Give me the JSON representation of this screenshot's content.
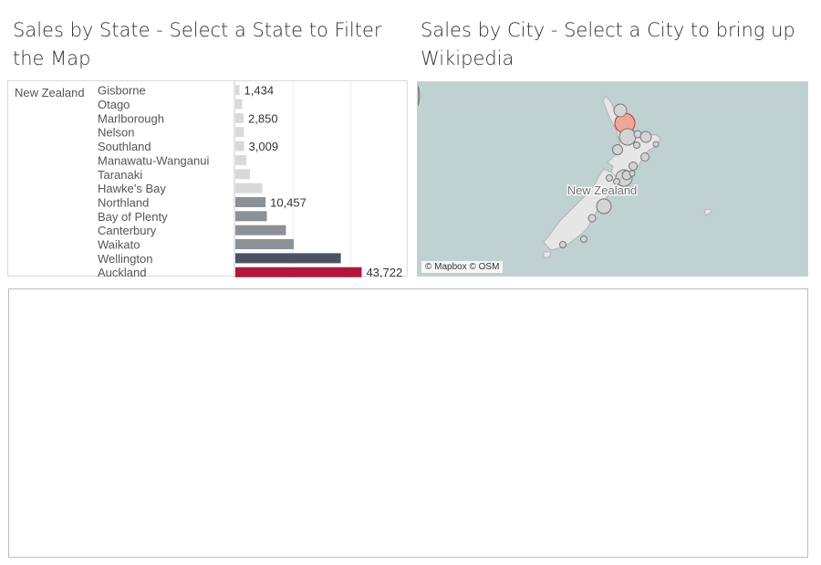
{
  "left_sheet": {
    "title": "Sales by State - Select a State to Filter the Map"
  },
  "right_sheet": {
    "title": "Sales by City - Select a City to bring up Wikipedia"
  },
  "chart_data": {
    "type": "bar",
    "orientation": "horizontal",
    "country": "New Zealand",
    "categories": [
      "Gisborne",
      "Otago",
      "Marlborough",
      "Nelson",
      "Southland",
      "Manawatu-Wanganui",
      "Taranaki",
      "Hawke’s Bay",
      "Northland",
      "Bay of Plenty",
      "Canterbury",
      "Waikato",
      "Wellington",
      "Auckland"
    ],
    "values": [
      1434,
      2400,
      2850,
      2950,
      3009,
      3800,
      5000,
      9300,
      10457,
      10900,
      17500,
      20200,
      36500,
      43722
    ],
    "labels": [
      "1,434",
      "",
      "2,850",
      "",
      "3,009",
      "",
      "",
      "",
      "10,457",
      "",
      "",
      "",
      "",
      "43,722"
    ],
    "bar_colors": [
      "#d9d9d9",
      "#d9d9d9",
      "#d9d9d9",
      "#d9d9d9",
      "#d9d9d9",
      "#d9d9d9",
      "#d9d9d9",
      "#d9d9d9",
      "#8c9196",
      "#8c9196",
      "#8c9196",
      "#8c9196",
      "#4b5364",
      "#b0173d"
    ],
    "xlim": [
      0,
      60000
    ],
    "grid": true
  },
  "map": {
    "country_label": "New Zealand",
    "attribution": "© Mapbox © OSM",
    "water_color": "#bfd1d0",
    "land_color": "#e8e8e8",
    "highlight_color": "#f0a59a"
  }
}
